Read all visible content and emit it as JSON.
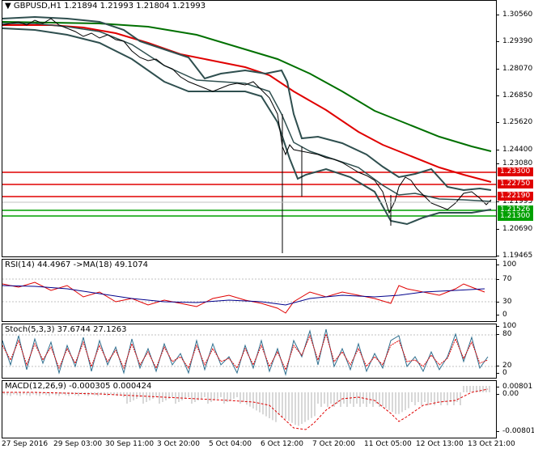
{
  "main": {
    "header": "GBPUSD,H1  1.21894 1.21993 1.21804 1.21993",
    "price_ticks": [
      "1.30560",
      "1.29390",
      "1.28070",
      "1.26850",
      "1.25620",
      "1.24400",
      "1.23080",
      "1.21993",
      "1.20690",
      "1.19465"
    ],
    "boxes": [
      {
        "label": "1.23300",
        "color": "#e00000"
      },
      {
        "label": "1.22750",
        "color": "#e00000"
      },
      {
        "label": "1.22190",
        "color": "#e00000"
      },
      {
        "label": "1.21526",
        "color": "#00a000"
      },
      {
        "label": "1.21300",
        "color": "#00a000"
      }
    ]
  },
  "rsi": {
    "header": "RSI(14) 44.4967  ->MA(18) 49.1074",
    "ticks": [
      "100",
      "70",
      "30",
      "0"
    ]
  },
  "stoch": {
    "header": "Stoch(5,3,3) 37.6744 27.1263",
    "ticks": [
      "100",
      "80",
      "20",
      "0"
    ]
  },
  "macd": {
    "header": "MACD(12,26,9) -0.000305 0.000424",
    "ticks": [
      "0.00801",
      "0.00",
      "-0.00801"
    ]
  },
  "time_labels": [
    "27 Sep 2016",
    "29 Sep 03:00",
    "30 Sep 11:00",
    "3 Oct 20:00",
    "5 Oct 04:00",
    "6 Oct 12:00",
    "7 Oct 20:00",
    "11 Oct 05:00",
    "12 Oct 13:00",
    "13 Oct 21:00"
  ],
  "colors": {
    "ema_slow": "#007000",
    "ema_mid": "#e00000",
    "bands": "#2f4f4f",
    "support": "#00a000",
    "resistance": "#e00000"
  }
}
